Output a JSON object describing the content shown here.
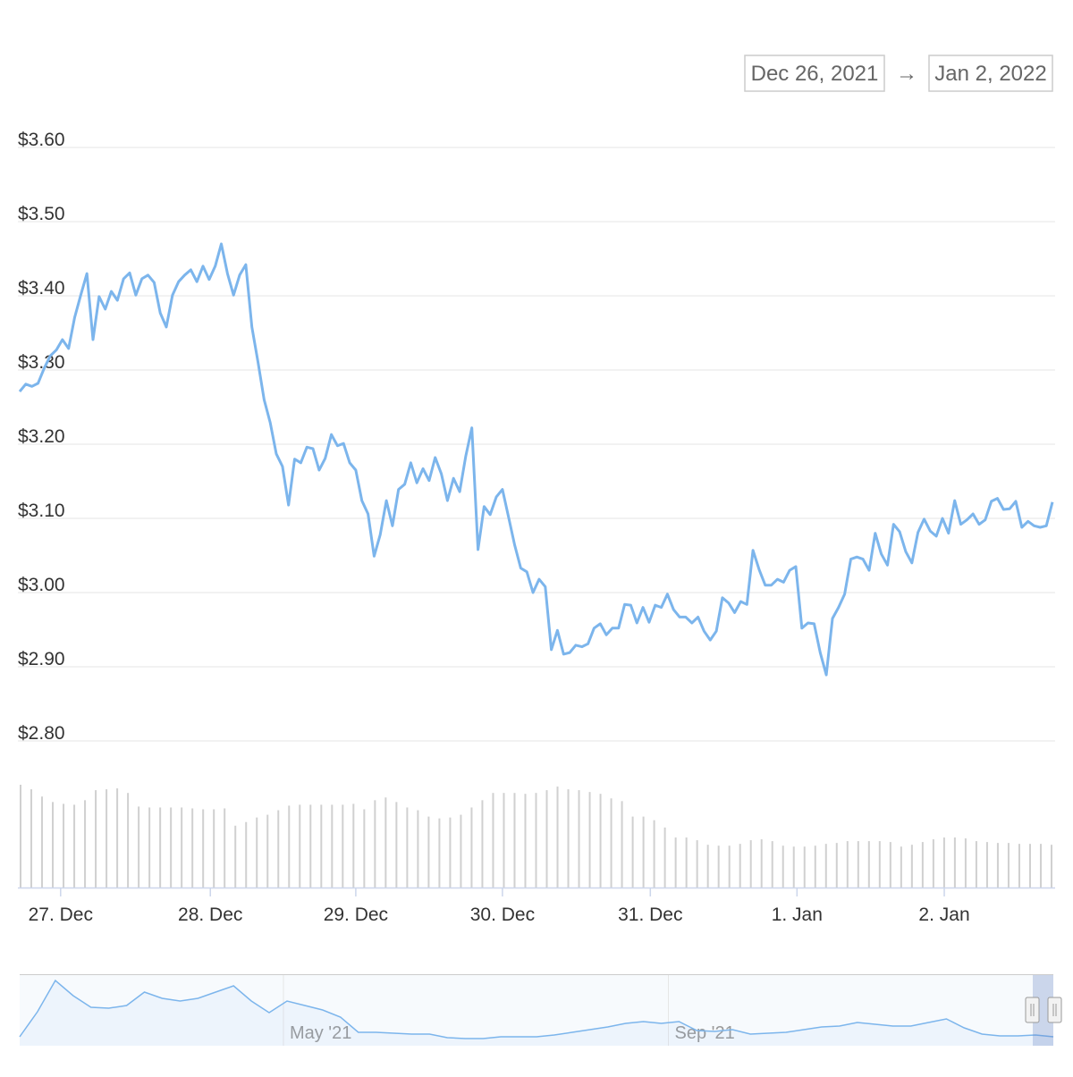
{
  "date_range": {
    "from": "Dec 26, 2021",
    "arrow": "→",
    "to": "Jan 2, 2022"
  },
  "chart_data": {
    "type": "line",
    "color": "#7cb5ec",
    "grid": true,
    "ylim": [
      2.8,
      3.6
    ],
    "yticks": [
      {
        "value": 2.8,
        "label": "$2.80"
      },
      {
        "value": 2.9,
        "label": "$2.90"
      },
      {
        "value": 3.0,
        "label": "$3.00"
      },
      {
        "value": 3.1,
        "label": "$3.10"
      },
      {
        "value": 3.2,
        "label": "$3.20"
      },
      {
        "value": 3.3,
        "label": "$3.30"
      },
      {
        "value": 3.4,
        "label": "$3.40"
      },
      {
        "value": 3.5,
        "label": "$3.50"
      },
      {
        "value": 3.6,
        "label": "$3.60"
      }
    ],
    "xticks": [
      {
        "value": 6.7,
        "label": "27. Dec"
      },
      {
        "value": 31.2,
        "label": "28. Dec"
      },
      {
        "value": 55.0,
        "label": "29. Dec"
      },
      {
        "value": 79.0,
        "label": "30. Dec"
      },
      {
        "value": 103.2,
        "label": "31. Dec"
      },
      {
        "value": 127.2,
        "label": "1. Jan"
      },
      {
        "value": 151.3,
        "label": "2. Jan"
      }
    ],
    "values": [
      3.271,
      3.281,
      3.278,
      3.282,
      3.302,
      3.319,
      3.327,
      3.341,
      3.329,
      3.371,
      3.401,
      3.43,
      3.341,
      3.399,
      3.382,
      3.406,
      3.394,
      3.423,
      3.431,
      3.401,
      3.423,
      3.428,
      3.418,
      3.377,
      3.358,
      3.401,
      3.419,
      3.428,
      3.435,
      3.419,
      3.44,
      3.422,
      3.44,
      3.47,
      3.43,
      3.401,
      3.428,
      3.442,
      3.358,
      3.311,
      3.26,
      3.229,
      3.187,
      3.17,
      3.118,
      3.18,
      3.175,
      3.196,
      3.194,
      3.165,
      3.181,
      3.213,
      3.198,
      3.201,
      3.175,
      3.165,
      3.124,
      3.106,
      3.049,
      3.078,
      3.124,
      3.09,
      3.139,
      3.146,
      3.175,
      3.148,
      3.167,
      3.151,
      3.182,
      3.16,
      3.124,
      3.154,
      3.136,
      3.184,
      3.222,
      3.058,
      3.116,
      3.105,
      3.129,
      3.139,
      3.102,
      3.064,
      3.033,
      3.028,
      3.0,
      3.018,
      3.008,
      2.923,
      2.949,
      2.917,
      2.919,
      2.929,
      2.927,
      2.931,
      2.952,
      2.958,
      2.943,
      2.952,
      2.952,
      2.984,
      2.983,
      2.959,
      2.98,
      2.96,
      2.983,
      2.98,
      2.998,
      2.977,
      2.967,
      2.967,
      2.959,
      2.967,
      2.948,
      2.936,
      2.948,
      2.993,
      2.986,
      2.973,
      2.988,
      2.984,
      3.057,
      3.031,
      3.01,
      3.01,
      3.018,
      3.014,
      3.03,
      3.035,
      2.952,
      2.959,
      2.958,
      2.919,
      2.889,
      2.965,
      2.98,
      2.998,
      3.045,
      3.048,
      3.045,
      3.03,
      3.08,
      3.052,
      3.037,
      3.092,
      3.082,
      3.055,
      3.04,
      3.081,
      3.099,
      3.083,
      3.076,
      3.1,
      3.08,
      3.124,
      3.092,
      3.098,
      3.106,
      3.092,
      3.098,
      3.123,
      3.127,
      3.112,
      3.113,
      3.123,
      3.088,
      3.096,
      3.09,
      3.088,
      3.09,
      3.122
    ],
    "volume": {
      "type": "bar",
      "color": "#d0d0d0",
      "values": [
        113,
        108,
        100,
        94,
        92,
        91,
        96,
        107,
        108,
        109,
        104,
        89,
        88,
        88,
        88,
        88,
        87,
        86,
        86,
        87,
        68,
        72,
        77,
        80,
        85,
        90,
        91,
        91,
        91,
        91,
        91,
        92,
        86,
        96,
        99,
        94,
        88,
        85,
        78,
        76,
        77,
        80,
        88,
        96,
        104,
        104,
        104,
        103,
        104,
        107,
        111,
        108,
        107,
        105,
        103,
        98,
        95,
        78,
        78,
        74,
        66,
        55,
        55,
        52,
        47,
        46,
        46,
        48,
        52,
        53,
        51,
        46,
        45,
        45,
        46,
        48,
        49,
        51,
        51,
        51,
        51,
        50,
        45,
        47,
        50,
        53,
        55,
        55,
        54,
        51,
        50,
        49,
        49,
        48,
        48,
        48,
        47
      ]
    },
    "navigator": {
      "type": "area",
      "color": "#7cb5ec",
      "xticks": [
        {
          "value": 14.8,
          "label": "May '21"
        },
        {
          "value": 36.4,
          "label": "Sep '21"
        }
      ],
      "values": [
        10,
        38,
        73,
        56,
        43,
        42,
        45,
        60,
        53,
        50,
        53,
        60,
        67,
        50,
        37,
        50,
        45,
        40,
        32,
        15,
        15,
        14,
        13,
        13,
        9,
        8,
        8,
        10,
        10,
        10,
        12,
        15,
        18,
        21,
        25,
        27,
        25,
        27,
        17,
        16,
        18,
        13,
        14,
        15,
        18,
        21,
        22,
        26,
        24,
        22,
        22,
        26,
        30,
        20,
        13,
        11,
        11,
        12,
        10
      ]
    }
  }
}
